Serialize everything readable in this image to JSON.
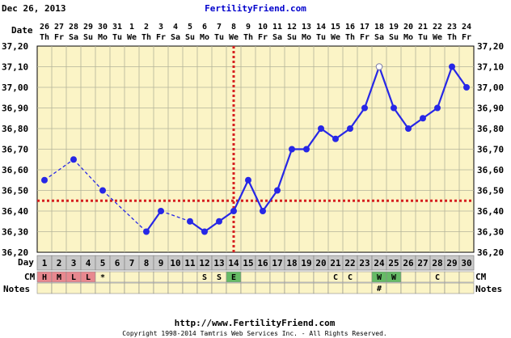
{
  "header": {
    "date": "Dec 26, 2013",
    "brand": "FertilityFriend.com"
  },
  "footer": {
    "url": "http://www.FertilityFriend.com",
    "copyright": "Copyright 1998-2014 Tamtris Web Services Inc. - All Rights Reserved."
  },
  "colors": {
    "plot_bg": "#fbf4c6",
    "grid": "#b4b49a",
    "line": "#2727e6",
    "coverline": "#d62020",
    "ovulation_line": "#d62020",
    "mucus_red": "#e8888f",
    "mucus_green": "#66bb66",
    "cell_bg": "#fbf4c6",
    "day_row_bg": "#c8c8c8"
  },
  "row_labels": {
    "date": "Date",
    "day": "Day",
    "cm": "CM",
    "notes": "Notes"
  },
  "chart_data": {
    "type": "line",
    "dates": [
      "26",
      "27",
      "28",
      "29",
      "30",
      "31",
      "1",
      "2",
      "3",
      "4",
      "5",
      "6",
      "7",
      "8",
      "9",
      "10",
      "11",
      "12",
      "13",
      "14",
      "15",
      "16",
      "17",
      "18",
      "19",
      "20",
      "21",
      "22",
      "23",
      "24"
    ],
    "weekdays": [
      "Th",
      "Fr",
      "Sa",
      "Su",
      "Mo",
      "Tu",
      "We",
      "Th",
      "Fr",
      "Sa",
      "Su",
      "Mo",
      "Tu",
      "We",
      "Th",
      "Fr",
      "Sa",
      "Su",
      "Mo",
      "Tu",
      "We",
      "Th",
      "Fr",
      "Sa",
      "Su",
      "Mo",
      "Tu",
      "We",
      "Th",
      "Fr"
    ],
    "cycle_days": [
      "1",
      "2",
      "3",
      "4",
      "5",
      "6",
      "7",
      "8",
      "9",
      "10",
      "11",
      "12",
      "13",
      "14",
      "15",
      "16",
      "17",
      "18",
      "19",
      "20",
      "21",
      "22",
      "23",
      "24",
      "25",
      "26",
      "27",
      "28",
      "29",
      "30"
    ],
    "temperatures": [
      36.55,
      null,
      36.65,
      null,
      36.5,
      null,
      null,
      36.3,
      36.4,
      null,
      36.35,
      36.3,
      36.35,
      36.4,
      36.55,
      36.4,
      36.5,
      36.7,
      36.7,
      36.8,
      36.75,
      36.8,
      36.9,
      37.1,
      36.9,
      36.8,
      36.85,
      36.9,
      37.1,
      37.0
    ],
    "open_marker_day": 24,
    "ylim": [
      36.2,
      37.2
    ],
    "yticks": [
      "36,20",
      "36,30",
      "36,40",
      "36,50",
      "36,60",
      "36,70",
      "36,80",
      "36,90",
      "37,00",
      "37,10",
      "37,20"
    ],
    "coverline": 36.45,
    "ovulation_day": 14,
    "cervical_mucus": [
      "H",
      "M",
      "L",
      "L",
      "*",
      "",
      "",
      "",
      "",
      "",
      "",
      "S",
      "S",
      "E",
      "",
      "",
      "",
      "",
      "",
      "",
      "C",
      "C",
      "",
      "W",
      "W",
      "",
      "",
      "C",
      "",
      ""
    ],
    "notes": [
      "",
      "",
      "",
      "",
      "",
      "",
      "",
      "",
      "",
      "",
      "",
      "",
      "",
      "",
      "",
      "",
      "",
      "",
      "",
      "",
      "",
      "",
      "",
      "#",
      "",
      "",
      "",
      "",
      "",
      ""
    ],
    "grid": true
  }
}
